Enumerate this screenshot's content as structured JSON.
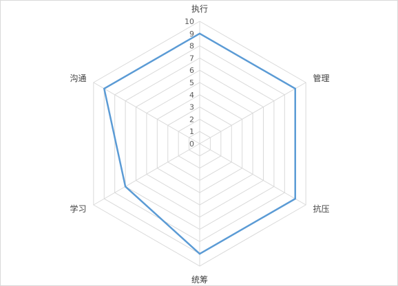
{
  "chart_data": {
    "type": "radar",
    "categories": [
      "执行",
      "管理",
      "抗压",
      "统筹",
      "学习",
      "沟通"
    ],
    "series": [
      {
        "values": [
          9,
          9,
          9,
          9,
          7,
          9
        ]
      }
    ],
    "r_range": [
      0,
      10
    ],
    "ticks": [
      "0",
      "1",
      "2",
      "3",
      "4",
      "5",
      "6",
      "7",
      "8",
      "9",
      "10"
    ],
    "grid": true,
    "legend": "none",
    "colors": {
      "series": "#5b9bd5",
      "grid": "#d9d9d9",
      "labels": "#595959"
    }
  }
}
